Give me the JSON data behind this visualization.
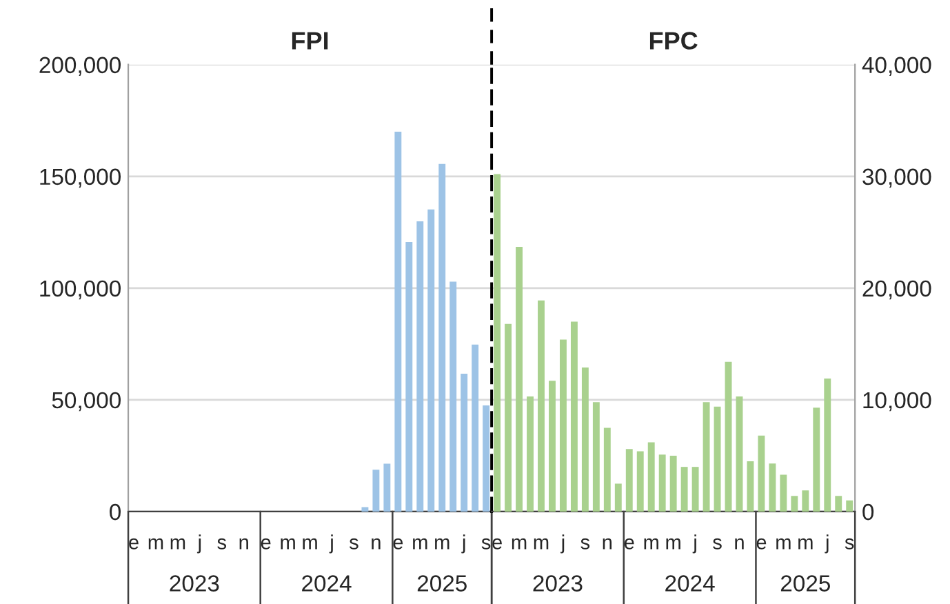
{
  "chart_data": [
    {
      "type": "bar",
      "title": "FPI",
      "categories": [
        "e",
        null,
        "m",
        null,
        "m",
        null,
        "j",
        null,
        "s",
        null,
        "n",
        null,
        "e",
        null,
        "m",
        null,
        "m",
        null,
        "j",
        null,
        "s",
        null,
        "n",
        null,
        "e",
        null,
        "m",
        null,
        "m",
        null,
        "j",
        null,
        "s"
      ],
      "series": [
        {
          "color": "#9dc3e6",
          "values": [
            null,
            null,
            null,
            null,
            null,
            null,
            null,
            null,
            null,
            null,
            null,
            null,
            null,
            null,
            null,
            null,
            null,
            null,
            null,
            null,
            null,
            2000,
            18700,
            21400,
            170000,
            120600,
            129900,
            135200,
            155600,
            102900,
            61700,
            74700,
            47500
          ]
        }
      ],
      "ylim": [
        0,
        200000
      ],
      "yticks": [
        {
          "value": 0,
          "label": "0"
        },
        {
          "value": 50000,
          "label": "50,000"
        },
        {
          "value": 100000,
          "label": "100,000"
        },
        {
          "value": 150000,
          "label": "150,000"
        },
        {
          "value": 200000,
          "label": "200,000"
        }
      ],
      "grid": "y",
      "annotations": [
        "2023",
        "2024",
        "2025"
      ]
    },
    {
      "type": "bar",
      "title": "FPC",
      "categories": [
        "e",
        null,
        "m",
        null,
        "m",
        null,
        "j",
        null,
        "s",
        null,
        "n",
        null,
        "e",
        null,
        "m",
        null,
        "m",
        null,
        "j",
        null,
        "s",
        null,
        "n",
        null,
        "e",
        null,
        "m",
        null,
        "m",
        null,
        "j",
        null,
        "s"
      ],
      "series": [
        {
          "color": "#a9d18e",
          "axis": "y2",
          "values": [
            30200,
            16800,
            23700,
            10300,
            18900,
            11700,
            15400,
            17000,
            12900,
            9800,
            7500,
            2500,
            5600,
            5400,
            6200,
            5100,
            5000,
            4000,
            4000,
            9800,
            9400,
            13400,
            10300,
            4500,
            6800,
            4300,
            3300,
            1400,
            1900,
            9300,
            11900,
            1400,
            1000
          ]
        }
      ],
      "y2lim": [
        0,
        40000
      ],
      "y2ticks": [
        {
          "value": 0,
          "label": "0"
        },
        {
          "value": 10000,
          "label": "10,000"
        },
        {
          "value": 20000,
          "label": "20,000"
        },
        {
          "value": 30000,
          "label": "30,000"
        },
        {
          "value": 40000,
          "label": "40,000"
        }
      ],
      "grid": "y",
      "annotations": [
        "2023",
        "2024",
        "2025"
      ]
    }
  ]
}
